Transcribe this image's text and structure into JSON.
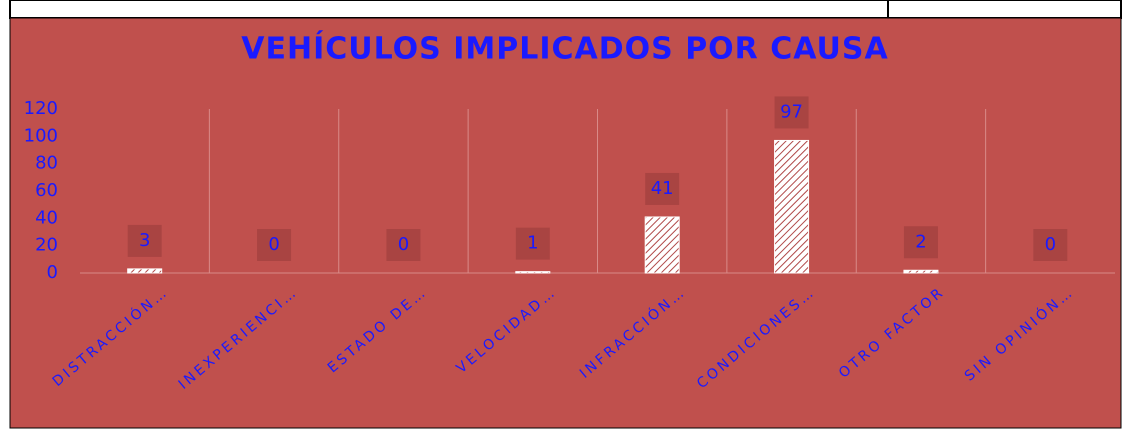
{
  "chart_data": {
    "type": "bar",
    "title": "VEHÍCULOS IMPLICADOS POR CAUSA",
    "categories": [
      "DISTRACCIÓN…",
      "INEXPERIENCI…",
      "ESTADO DE…",
      "VELOCIDAD…",
      "INFRACCIÓN…",
      "CONDICIONES…",
      "OTRO FACTOR",
      "SIN OPINIÓN…"
    ],
    "values": [
      3,
      0,
      0,
      1,
      41,
      97,
      2,
      0
    ],
    "ylim": [
      0,
      120
    ],
    "yticks": [
      0,
      20,
      40,
      60,
      80,
      100,
      120
    ],
    "grid": true,
    "color": "#ffffff"
  }
}
